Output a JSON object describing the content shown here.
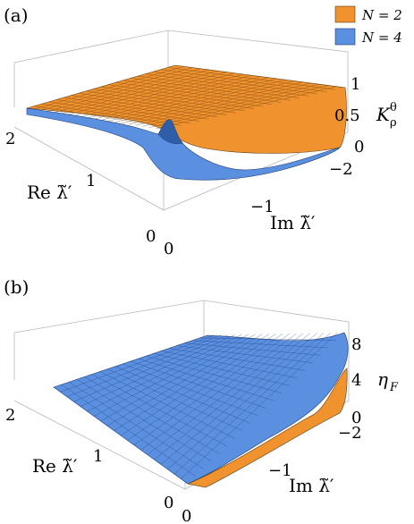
{
  "panels": [
    {
      "label": "(a)",
      "z_label": "K",
      "z_label_sub": "ρ",
      "z_label_sup": "θ",
      "x_label": "Re λ̃′",
      "y_label": "Im λ̃′",
      "x_ticks": [
        "2",
        "1",
        "0"
      ],
      "y_ticks": [
        "0",
        "−1",
        "−2"
      ],
      "z_ticks": [
        "1",
        "0.5",
        "0"
      ]
    },
    {
      "label": "(b)",
      "z_label": "η",
      "z_label_sub": "F",
      "x_label": "Re λ̃′",
      "y_label": "Im λ̃′",
      "x_ticks": [
        "2",
        "1",
        "0"
      ],
      "y_ticks": [
        "0",
        "−1",
        "−2"
      ],
      "z_ticks": [
        "8",
        "4",
        "0"
      ]
    }
  ],
  "legend": {
    "items": [
      {
        "label": "N = 2",
        "color": "#F0922E"
      },
      {
        "label": "N = 4",
        "color": "#5B8FE0"
      }
    ]
  },
  "chart_data": [
    {
      "type": "surface",
      "panel": "(a)",
      "xlabel": "Re λ̃′",
      "ylabel": "Im λ̃′",
      "zlabel": "K_ρ^θ",
      "xlim": [
        0,
        2.2
      ],
      "ylim": [
        -2.2,
        0
      ],
      "zlim": [
        0,
        1.1
      ],
      "series": [
        {
          "name": "N = 2",
          "color": "#F0922E",
          "samples": [
            {
              "x": 2,
              "y": 0,
              "z": 0.35
            },
            {
              "x": 2,
              "y": -2,
              "z": 0.35
            },
            {
              "x": 0,
              "y": -2,
              "z": 0.05
            },
            {
              "x": 0,
              "y": 0,
              "z": 0.9
            }
          ]
        },
        {
          "name": "N = 4",
          "color": "#5B8FE0",
          "samples": [
            {
              "x": 2,
              "y": 0,
              "z": 0.25
            },
            {
              "x": 2,
              "y": -2,
              "z": 0.2
            },
            {
              "x": 0,
              "y": -2,
              "z": 0.0
            },
            {
              "x": 0,
              "y": 0,
              "z": 1.0
            }
          ]
        }
      ]
    },
    {
      "type": "surface",
      "panel": "(b)",
      "xlabel": "Re λ̃′",
      "ylabel": "Im λ̃′",
      "zlabel": "η_F",
      "xlim": [
        0,
        2.2
      ],
      "ylim": [
        -2.2,
        0
      ],
      "zlim": [
        0,
        9
      ],
      "series": [
        {
          "name": "N = 2",
          "color": "#F0922E",
          "samples": [
            {
              "x": 2,
              "y": 0,
              "z": 4.5
            },
            {
              "x": 2,
              "y": -2,
              "z": 2.0
            },
            {
              "x": 0,
              "y": -2,
              "z": 3.0
            },
            {
              "x": 0,
              "y": 0,
              "z": 0.5
            }
          ]
        },
        {
          "name": "N = 4",
          "color": "#5B8FE0",
          "samples": [
            {
              "x": 2,
              "y": 0,
              "z": 4.5
            },
            {
              "x": 2,
              "y": -2,
              "z": 2.5
            },
            {
              "x": 0,
              "y": -2,
              "z": 9.0
            },
            {
              "x": 0,
              "y": 0,
              "z": 0.5
            }
          ]
        }
      ]
    }
  ]
}
